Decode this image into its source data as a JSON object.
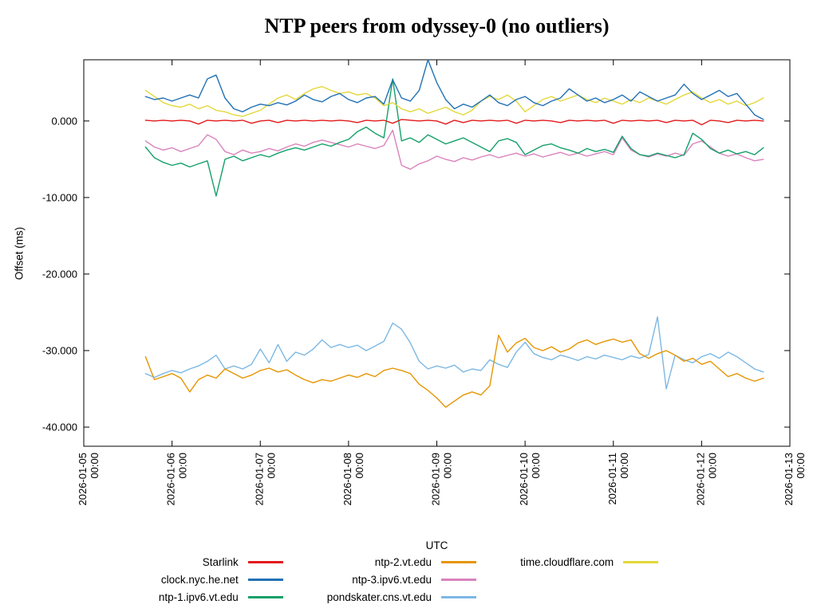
{
  "chart_data": {
    "type": "line",
    "title": "NTP peers from odyssey-0 (no outliers)",
    "xlabel": "UTC",
    "ylabel": "Offset (ms)",
    "x_axis": {
      "xlim_days": [
        0,
        8
      ],
      "ticks_days": [
        0,
        1,
        2,
        3,
        4,
        5,
        6,
        7,
        8
      ],
      "tick_labels": [
        [
          "2026-01-05",
          "00:00"
        ],
        [
          "2026-01-06",
          "00:00"
        ],
        [
          "2026-01-07",
          "00:00"
        ],
        [
          "2026-01-08",
          "00:00"
        ],
        [
          "2026-01-09",
          "00:00"
        ],
        [
          "2026-01-10",
          "00:00"
        ],
        [
          "2026-01-11",
          "00:00"
        ],
        [
          "2026-01-12",
          "00:00"
        ],
        [
          "2026-01-13",
          "00:00"
        ]
      ]
    },
    "y_axis": {
      "ylim": [
        -42.5,
        8
      ],
      "ticks": [
        0,
        -10,
        -20,
        -30,
        -40
      ],
      "tick_labels": [
        "0.000",
        "-10.000",
        "-20.000",
        "-30.000",
        "-40.000"
      ]
    },
    "sampling": {
      "x0_days": 0.7,
      "dx_days": 0.1
    },
    "draw_order": [
      5,
      3,
      4,
      2,
      6,
      1,
      0
    ],
    "legend": {
      "columns": [
        [
          0,
          1,
          2
        ],
        [
          3,
          4,
          5
        ],
        [
          6
        ]
      ],
      "position": "below"
    },
    "series": [
      {
        "name": "Starlink",
        "color": "#e31a1c",
        "y": [
          0.1,
          0.0,
          0.1,
          0.0,
          0.1,
          0.0,
          -0.4,
          0.1,
          0.0,
          0.1,
          0.0,
          0.1,
          -0.3,
          0.0,
          0.1,
          -0.2,
          0.1,
          0.0,
          0.1,
          0.0,
          0.1,
          0.0,
          0.1,
          0.0,
          -0.2,
          0.1,
          0.0,
          0.1,
          -0.3,
          0.2,
          0.1,
          0.0,
          0.1,
          0.0,
          -0.4,
          0.1,
          -0.2,
          0.1,
          0.0,
          0.1,
          0.0,
          0.1,
          -0.3,
          0.1,
          0.0,
          0.1,
          0.0,
          -0.2,
          0.1,
          0.0,
          0.1,
          0.0,
          0.1,
          -0.3,
          0.1,
          0.0,
          0.1,
          0.0,
          0.1,
          -0.2,
          0.1,
          0.0,
          0.1,
          -0.5,
          0.1,
          0.0,
          -0.2,
          0.1,
          0.0,
          0.1,
          0.0
        ]
      },
      {
        "name": "clock.nyc.he.net",
        "color": "#2171b5",
        "y": [
          3.2,
          2.8,
          3.0,
          2.6,
          3.0,
          3.4,
          3.0,
          5.5,
          6.0,
          3.0,
          1.6,
          1.2,
          1.8,
          2.2,
          2.0,
          2.4,
          2.1,
          2.6,
          3.4,
          2.8,
          2.5,
          3.2,
          3.6,
          2.8,
          2.4,
          3.0,
          3.2,
          2.2,
          5.4,
          3.0,
          2.6,
          4.0,
          8.0,
          5.0,
          2.8,
          1.6,
          2.2,
          1.8,
          2.6,
          3.4,
          2.4,
          2.0,
          2.8,
          3.2,
          2.4,
          2.0,
          2.6,
          3.0,
          4.2,
          3.4,
          2.6,
          3.0,
          2.4,
          2.8,
          3.4,
          2.6,
          3.8,
          3.2,
          2.6,
          3.0,
          3.4,
          4.8,
          3.6,
          2.8,
          3.4,
          4.0,
          3.2,
          3.6,
          2.2,
          0.8,
          0.2
        ]
      },
      {
        "name": "ntp-1.ipv6.vt.edu",
        "color": "#14a06a",
        "y": [
          -3.4,
          -4.8,
          -5.4,
          -5.8,
          -5.5,
          -6.0,
          -5.6,
          -5.2,
          -9.8,
          -5.0,
          -4.6,
          -5.2,
          -4.8,
          -4.4,
          -4.7,
          -4.2,
          -3.8,
          -3.5,
          -3.8,
          -3.4,
          -3.0,
          -3.3,
          -2.8,
          -2.4,
          -1.4,
          -0.8,
          -1.6,
          -2.2,
          5.5,
          -2.6,
          -2.2,
          -2.8,
          -1.8,
          -2.4,
          -3.0,
          -2.6,
          -2.2,
          -2.8,
          -3.4,
          -4.0,
          -2.6,
          -2.3,
          -2.8,
          -4.4,
          -3.8,
          -3.2,
          -3.0,
          -3.5,
          -3.8,
          -4.2,
          -3.6,
          -4.0,
          -3.7,
          -4.1,
          -2.0,
          -3.6,
          -4.4,
          -4.6,
          -4.2,
          -4.5,
          -4.8,
          -4.4,
          -1.6,
          -2.4,
          -3.6,
          -4.2,
          -3.8,
          -4.3,
          -4.0,
          -4.4,
          -3.5
        ]
      },
      {
        "name": "ntp-2.vt.edu",
        "color": "#e69500",
        "y": [
          -30.8,
          -33.8,
          -33.4,
          -33.0,
          -33.6,
          -35.4,
          -33.8,
          -33.2,
          -33.6,
          -32.4,
          -33.0,
          -33.6,
          -33.2,
          -32.6,
          -32.3,
          -32.8,
          -32.5,
          -33.2,
          -33.8,
          -34.2,
          -33.8,
          -34.0,
          -33.6,
          -33.2,
          -33.5,
          -33.0,
          -33.4,
          -32.6,
          -32.3,
          -32.6,
          -33.0,
          -34.4,
          -35.2,
          -36.2,
          -37.4,
          -36.6,
          -35.8,
          -35.4,
          -35.8,
          -34.6,
          -28.0,
          -30.2,
          -29.0,
          -28.4,
          -29.6,
          -30.0,
          -29.5,
          -30.2,
          -29.8,
          -29.0,
          -28.6,
          -29.2,
          -28.8,
          -28.5,
          -28.9,
          -28.6,
          -30.4,
          -31.0,
          -30.4,
          -30.0,
          -30.6,
          -31.4,
          -31.0,
          -31.8,
          -31.4,
          -32.4,
          -33.4,
          -33.0,
          -33.6,
          -34.0,
          -33.6
        ]
      },
      {
        "name": "ntp-3.ipv6.vt.edu",
        "color": "#d983bd",
        "y": [
          -2.6,
          -3.4,
          -3.8,
          -3.5,
          -4.0,
          -3.6,
          -3.2,
          -1.8,
          -2.4,
          -4.0,
          -4.4,
          -3.8,
          -4.2,
          -4.0,
          -3.6,
          -3.9,
          -3.4,
          -3.0,
          -3.3,
          -2.8,
          -2.5,
          -2.8,
          -3.1,
          -3.4,
          -3.0,
          -3.3,
          -3.6,
          -3.2,
          -1.2,
          -5.8,
          -6.3,
          -5.6,
          -5.2,
          -4.6,
          -5.0,
          -5.3,
          -4.8,
          -5.1,
          -4.7,
          -4.4,
          -4.8,
          -4.5,
          -4.2,
          -4.6,
          -4.3,
          -4.7,
          -4.4,
          -4.1,
          -4.5,
          -4.2,
          -4.6,
          -4.3,
          -4.0,
          -4.4,
          -2.2,
          -3.8,
          -4.4,
          -4.7,
          -4.3,
          -4.6,
          -4.2,
          -4.5,
          -3.0,
          -2.6,
          -3.4,
          -4.2,
          -4.6,
          -4.3,
          -4.8,
          -5.2,
          -5.0
        ]
      },
      {
        "name": "pondskater.cns.vt.edu",
        "color": "#7cb8e4",
        "y": [
          -33.0,
          -33.5,
          -33.0,
          -32.6,
          -32.9,
          -32.4,
          -32.0,
          -31.4,
          -30.6,
          -32.4,
          -32.0,
          -32.4,
          -31.8,
          -29.8,
          -31.6,
          -29.2,
          -31.4,
          -30.2,
          -30.6,
          -29.8,
          -28.6,
          -29.6,
          -29.2,
          -29.6,
          -29.3,
          -30.0,
          -29.4,
          -28.8,
          -26.4,
          -27.2,
          -29.0,
          -31.4,
          -32.4,
          -32.0,
          -32.3,
          -31.9,
          -32.8,
          -32.4,
          -32.6,
          -31.2,
          -31.8,
          -32.2,
          -30.2,
          -28.9,
          -30.4,
          -30.9,
          -31.2,
          -30.6,
          -30.9,
          -31.3,
          -30.8,
          -31.1,
          -30.6,
          -30.9,
          -31.2,
          -30.7,
          -31.0,
          -30.5,
          -25.6,
          -35.0,
          -30.6,
          -31.2,
          -31.6,
          -30.8,
          -30.4,
          -31.0,
          -30.2,
          -30.8,
          -31.6,
          -32.4,
          -32.8
        ]
      },
      {
        "name": "time.cloudflare.com",
        "color": "#e3d83a",
        "y": [
          4.0,
          3.2,
          2.4,
          2.0,
          1.8,
          2.2,
          1.6,
          2.0,
          1.4,
          1.2,
          0.8,
          0.6,
          1.0,
          1.4,
          2.2,
          3.0,
          3.4,
          2.8,
          3.6,
          4.2,
          4.5,
          4.0,
          3.6,
          3.8,
          3.4,
          3.6,
          3.0,
          2.0,
          2.4,
          1.6,
          1.2,
          1.6,
          1.0,
          1.4,
          1.8,
          1.2,
          0.8,
          1.4,
          2.6,
          3.2,
          2.8,
          3.4,
          2.6,
          1.2,
          2.0,
          2.8,
          3.2,
          2.6,
          3.0,
          3.4,
          2.8,
          2.4,
          3.0,
          2.6,
          2.2,
          2.8,
          2.4,
          3.0,
          2.6,
          2.2,
          2.8,
          3.4,
          3.8,
          3.0,
          2.4,
          2.8,
          2.2,
          2.6,
          2.0,
          2.4,
          3.0
        ]
      }
    ]
  }
}
